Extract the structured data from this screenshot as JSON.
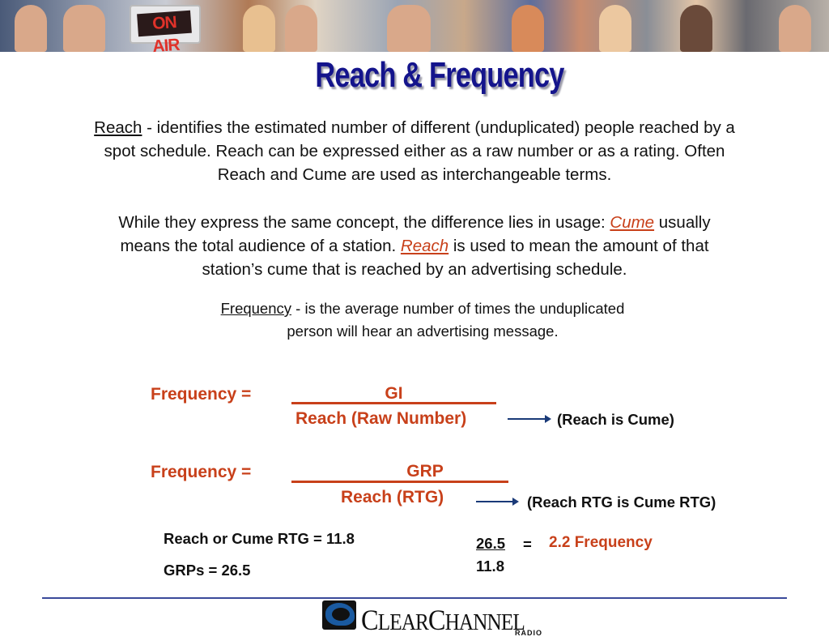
{
  "banner": {
    "sign_text": "ON AIR"
  },
  "title": "Reach & Frequency",
  "reach_para": {
    "term": "Reach",
    "line1_rest": " - identifies the estimated number of different (unduplicated) people reached by a",
    "line2": "spot schedule.  Reach can be expressed either as a raw number or as a rating.  Often",
    "line3": "Reach and Cume are used as  interchangeable terms."
  },
  "usage_para": {
    "line1_pre": "While they express the same concept, the difference lies in usage:  ",
    "cume_term": "Cume",
    "line1_post": " usually",
    "line2_pre": "means the total  audience of a station.  ",
    "reach_term": "Reach",
    "line2_post": " is used to mean the amount of that",
    "line3": "station’s cume that is reached by an advertising schedule."
  },
  "frequency_para": {
    "term": "Frequency",
    "line1_rest": " - is the average number of times the unduplicated",
    "line2": "person will hear an advertising message."
  },
  "formula1": {
    "lhs": "Frequency  =",
    "numerator": "GI",
    "denominator": "Reach (Raw Number)",
    "note": "(Reach is Cume)"
  },
  "formula2": {
    "lhs": "Frequency  =",
    "numerator": "GRP",
    "denominator": "Reach (RTG)",
    "note": "(Reach RTG is Cume RTG)"
  },
  "example": {
    "reach_line": "Reach or Cume RTG = 11.8",
    "grps_line": "GRPs = 26.5",
    "numerator": "26.5",
    "equals": "=",
    "denominator": "11.8",
    "result": "2.2 Frequency"
  },
  "logo": {
    "text_c1": "C",
    "text_1": "LEAR",
    "text_c2": "C",
    "text_2": "HANNEL",
    "sub": "RADIO"
  },
  "colors": {
    "title": "#14148c",
    "accent": "#c8401a",
    "arrow": "#1a3a78",
    "rule": "#3a4a9a"
  }
}
